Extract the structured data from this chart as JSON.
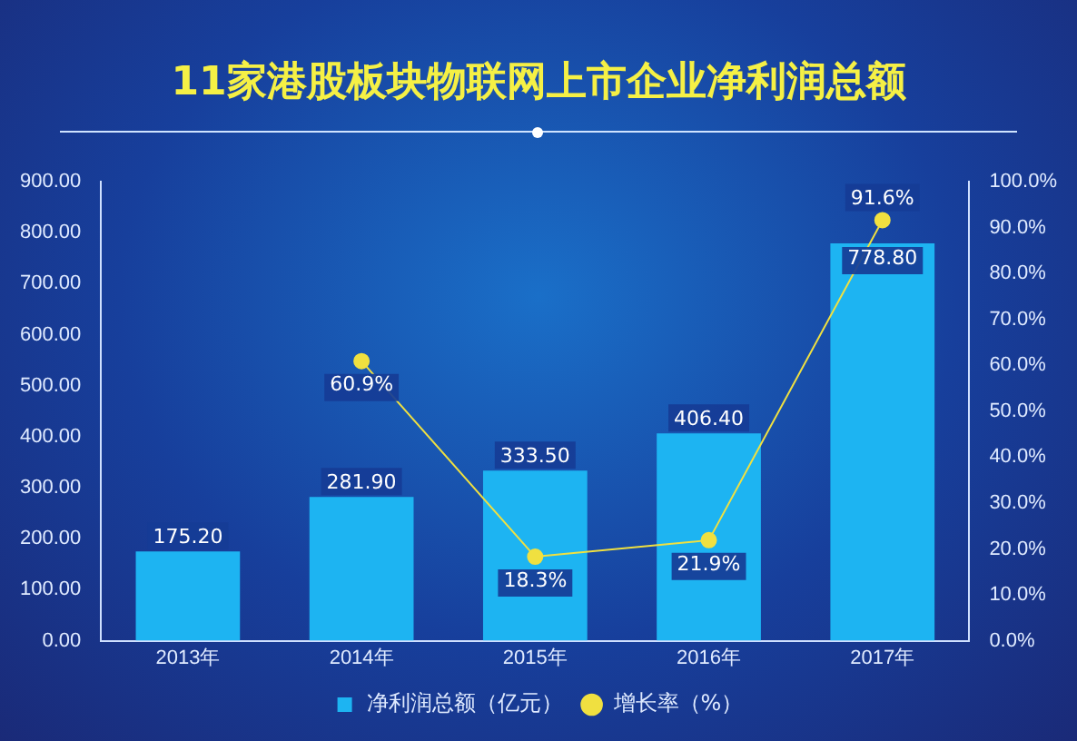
{
  "chart_data": {
    "type": "bar",
    "title": "11家港股板块物联网上市企业净利润总额",
    "categories": [
      "2013年",
      "2014年",
      "2015年",
      "2016年",
      "2017年"
    ],
    "series": [
      {
        "name": "净利润总额（亿元）",
        "type": "bar",
        "color": "#1db4f2",
        "values": [
          175.2,
          281.9,
          333.5,
          406.4,
          778.8
        ],
        "value_labels": [
          "175.20",
          "281.90",
          "333.50",
          "406.40",
          "778.80"
        ]
      },
      {
        "name": "增长率（%）",
        "type": "line",
        "axis": "y2",
        "color": "#f0e040",
        "marker": "circle",
        "values": [
          null,
          60.9,
          18.3,
          21.9,
          91.6
        ],
        "value_labels": [
          null,
          "60.9%",
          "18.3%",
          "21.9%",
          "91.6%"
        ]
      }
    ],
    "ylim": [
      0,
      900
    ],
    "yticks": [
      {
        "value": 0,
        "label": "0.00"
      },
      {
        "value": 100,
        "label": "100.00"
      },
      {
        "value": 200,
        "label": "200.00"
      },
      {
        "value": 300,
        "label": "300.00"
      },
      {
        "value": 400,
        "label": "400.00"
      },
      {
        "value": 500,
        "label": "500.00"
      },
      {
        "value": 600,
        "label": "600.00"
      },
      {
        "value": 700,
        "label": "700.00"
      },
      {
        "value": 800,
        "label": "800.00"
      },
      {
        "value": 900,
        "label": "900.00"
      }
    ],
    "y2lim": [
      0,
      100
    ],
    "y2ticks": [
      {
        "value": 0,
        "label": "0.0%"
      },
      {
        "value": 10,
        "label": "10.0%"
      },
      {
        "value": 20,
        "label": "20.0%"
      },
      {
        "value": 30,
        "label": "30.0%"
      },
      {
        "value": 40,
        "label": "40.0%"
      },
      {
        "value": 50,
        "label": "50.0%"
      },
      {
        "value": 60,
        "label": "60.0%"
      },
      {
        "value": 70,
        "label": "70.0%"
      },
      {
        "value": 80,
        "label": "80.0%"
      },
      {
        "value": 90,
        "label": "90.0%"
      },
      {
        "value": 100,
        "label": "100.0%"
      }
    ],
    "grid": false,
    "legend": "bottom"
  }
}
